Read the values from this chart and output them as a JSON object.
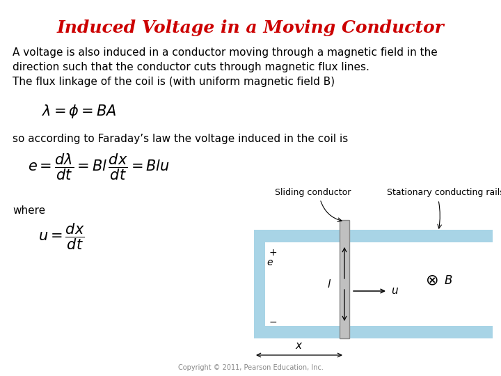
{
  "title": "Induced Voltage in a Moving Conductor",
  "title_color": "#cc0000",
  "title_fontsize": 18,
  "body_text_1": "A voltage is also induced in a conductor moving through a magnetic field in the\ndirection such that the conductor cuts through magnetic flux lines.\nThe flux linkage of the coil is (with uniform magnetic field B)",
  "formula_1": "$\\lambda = \\phi = BA$",
  "body_text_2": "so according to Faraday’s law the voltage induced in the coil is",
  "formula_2": "$e = \\dfrac{d\\lambda}{dt} = Bl\\,\\dfrac{dx}{dt} = Blu$",
  "body_text_3": "where",
  "formula_3": "$u = \\dfrac{dx}{dt}$",
  "copyright": "Copyright © 2011, Pearson Education, Inc.",
  "rail_color": "#a8d4e6",
  "conductor_color": "#c0c0c0",
  "conductor_edge": "#888888",
  "background_color": "#ffffff",
  "text_fontsize": 11,
  "formula_fontsize": 14,
  "slide_label_1": "Sliding conductor",
  "slide_label_2": "Stationary conducting rails"
}
